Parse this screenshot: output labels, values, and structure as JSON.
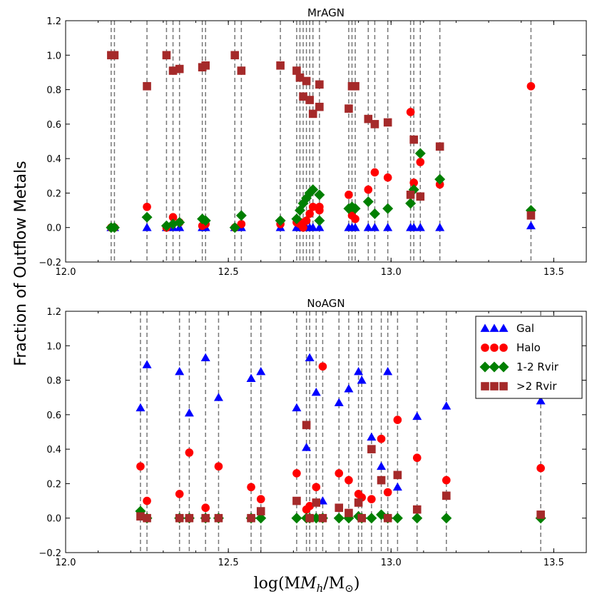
{
  "figure": {
    "ylabel": "Fraction of Outflow Metals",
    "xlabel_main": "log(M",
    "xlabel_sub1": "h",
    "xlabel_mid": "/M",
    "xlabel_sub2": "⊙",
    "xlabel_end": ")"
  },
  "legend": [
    {
      "name": "Gal",
      "marker": "triangle",
      "color": "#0000ff"
    },
    {
      "name": "Halo",
      "marker": "circle",
      "color": "#ff0000"
    },
    {
      "name": "1-2 Rvir",
      "marker": "diamond",
      "color": "#007f00"
    },
    {
      "name": ">2 Rvir",
      "marker": "square",
      "color": "#a52a2a"
    }
  ],
  "chart_data": [
    {
      "type": "scatter",
      "title": "MrAGN",
      "xlim": [
        12.0,
        13.6
      ],
      "ylim": [
        -0.2,
        1.2
      ],
      "xticks": [
        "12.0",
        "12.5",
        "13.0",
        "13.5"
      ],
      "xtick_values": [
        12.0,
        12.5,
        13.0,
        13.5
      ],
      "yticks": [
        "−0.2",
        "0.0",
        "0.2",
        "0.4",
        "0.6",
        "0.8",
        "1.0",
        "1.2"
      ],
      "ytick_values": [
        -0.2,
        0.0,
        0.2,
        0.4,
        0.6,
        0.8,
        1.0,
        1.2
      ],
      "vlines": [
        12.14,
        12.15,
        12.25,
        12.31,
        12.33,
        12.35,
        12.42,
        12.43,
        12.52,
        12.54,
        12.66,
        12.71,
        12.72,
        12.73,
        12.74,
        12.75,
        12.76,
        12.78,
        12.87,
        12.88,
        12.89,
        12.93,
        12.95,
        12.99,
        13.06,
        13.07,
        13.09,
        13.15,
        13.43
      ],
      "series": [
        {
          "name": "Gal",
          "points": [
            [
              12.14,
              0.0
            ],
            [
              12.15,
              0.0
            ],
            [
              12.25,
              0.0
            ],
            [
              12.31,
              0.0
            ],
            [
              12.33,
              0.0
            ],
            [
              12.35,
              0.0
            ],
            [
              12.42,
              0.0
            ],
            [
              12.43,
              0.0
            ],
            [
              12.52,
              0.0
            ],
            [
              12.54,
              0.0
            ],
            [
              12.66,
              0.0
            ],
            [
              12.71,
              0.0
            ],
            [
              12.72,
              0.0
            ],
            [
              12.73,
              0.0
            ],
            [
              12.74,
              0.0
            ],
            [
              12.75,
              0.0
            ],
            [
              12.76,
              0.0
            ],
            [
              12.78,
              0.0
            ],
            [
              12.87,
              0.0
            ],
            [
              12.88,
              0.0
            ],
            [
              12.89,
              0.0
            ],
            [
              12.93,
              0.0
            ],
            [
              12.95,
              0.0
            ],
            [
              12.99,
              0.0
            ],
            [
              13.06,
              0.0
            ],
            [
              13.07,
              0.0
            ],
            [
              13.09,
              0.0
            ],
            [
              13.15,
              0.0
            ],
            [
              13.43,
              0.01
            ]
          ]
        },
        {
          "name": "Halo",
          "points": [
            [
              12.14,
              0.0
            ],
            [
              12.15,
              0.0
            ],
            [
              12.25,
              0.12
            ],
            [
              12.31,
              0.0
            ],
            [
              12.33,
              0.06
            ],
            [
              12.35,
              0.03
            ],
            [
              12.42,
              0.01
            ],
            [
              12.43,
              0.02
            ],
            [
              12.52,
              0.0
            ],
            [
              12.54,
              0.02
            ],
            [
              12.66,
              0.02
            ],
            [
              12.71,
              0.03
            ],
            [
              12.72,
              0.02
            ],
            [
              12.73,
              0.03
            ],
            [
              12.74,
              0.04
            ],
            [
              12.75,
              0.08
            ],
            [
              12.76,
              0.12
            ],
            [
              12.78,
              0.12
            ],
            [
              12.87,
              0.19
            ],
            [
              12.88,
              0.07
            ],
            [
              12.89,
              0.05
            ],
            [
              12.93,
              0.22
            ],
            [
              12.95,
              0.32
            ],
            [
              12.99,
              0.29
            ],
            [
              13.06,
              0.67
            ],
            [
              13.07,
              0.26
            ],
            [
              13.09,
              0.38
            ],
            [
              13.15,
              0.25
            ],
            [
              13.43,
              0.82
            ]
          ]
        },
        {
          "name": "1-2 Rvir",
          "points": [
            [
              12.14,
              0.0
            ],
            [
              12.15,
              0.0
            ],
            [
              12.25,
              0.06
            ],
            [
              12.31,
              0.01
            ],
            [
              12.33,
              0.02
            ],
            [
              12.35,
              0.03
            ],
            [
              12.42,
              0.05
            ],
            [
              12.43,
              0.04
            ],
            [
              12.52,
              0.0
            ],
            [
              12.54,
              0.07
            ],
            [
              12.66,
              0.04
            ],
            [
              12.71,
              0.05
            ],
            [
              12.72,
              0.1
            ],
            [
              12.73,
              0.14
            ],
            [
              12.74,
              0.17
            ],
            [
              12.75,
              0.2
            ],
            [
              12.76,
              0.22
            ],
            [
              12.78,
              0.19
            ],
            [
              12.87,
              0.11
            ],
            [
              12.88,
              0.12
            ],
            [
              12.89,
              0.11
            ],
            [
              12.93,
              0.15
            ],
            [
              12.95,
              0.08
            ],
            [
              12.99,
              0.11
            ],
            [
              13.06,
              0.14
            ],
            [
              13.07,
              0.22
            ],
            [
              13.09,
              0.43
            ],
            [
              13.15,
              0.28
            ],
            [
              13.43,
              0.1
            ]
          ]
        },
        {
          "name": ">2 Rvir",
          "points": [
            [
              12.14,
              1.0
            ],
            [
              12.15,
              1.0
            ],
            [
              12.25,
              0.82
            ],
            [
              12.31,
              1.0
            ],
            [
              12.33,
              0.91
            ],
            [
              12.35,
              0.92
            ],
            [
              12.42,
              0.93
            ],
            [
              12.43,
              0.94
            ],
            [
              12.52,
              1.0
            ],
            [
              12.54,
              0.91
            ],
            [
              12.66,
              0.94
            ],
            [
              12.71,
              0.91
            ],
            [
              12.72,
              0.87
            ],
            [
              12.73,
              0.76
            ],
            [
              12.74,
              0.85
            ],
            [
              12.75,
              0.74
            ],
            [
              12.76,
              0.66
            ],
            [
              12.78,
              0.83
            ],
            [
              12.87,
              0.69
            ],
            [
              12.88,
              0.82
            ],
            [
              12.89,
              0.82
            ],
            [
              12.93,
              0.63
            ],
            [
              12.95,
              0.6
            ],
            [
              12.99,
              0.61
            ],
            [
              13.06,
              0.19
            ],
            [
              13.07,
              0.51
            ],
            [
              13.09,
              0.18
            ],
            [
              13.15,
              0.47
            ],
            [
              13.43,
              0.07
            ]
          ]
        }
      ],
      "extra_points": [
        {
          "series": ">2 Rvir",
          "points": [
            [
              12.78,
              0.7
            ]
          ]
        },
        {
          "series": "1-2 Rvir",
          "points": [
            [
              12.78,
              0.04
            ]
          ]
        },
        {
          "series": "Halo",
          "points": [
            [
              12.78,
              0.1
            ],
            [
              12.73,
              0.0
            ]
          ]
        }
      ]
    },
    {
      "type": "scatter",
      "title": "NoAGN",
      "xlim": [
        12.0,
        13.6
      ],
      "ylim": [
        -0.2,
        1.2
      ],
      "xticks": [
        "12.0",
        "12.5",
        "13.0",
        "13.5"
      ],
      "xtick_values": [
        12.0,
        12.5,
        13.0,
        13.5
      ],
      "yticks": [
        "−0.2",
        "0.0",
        "0.2",
        "0.4",
        "0.6",
        "0.8",
        "1.0",
        "1.2"
      ],
      "ytick_values": [
        -0.2,
        0.0,
        0.2,
        0.4,
        0.6,
        0.8,
        1.0,
        1.2
      ],
      "vlines": [
        12.23,
        12.25,
        12.35,
        12.38,
        12.43,
        12.47,
        12.57,
        12.6,
        12.71,
        12.74,
        12.75,
        12.77,
        12.79,
        12.84,
        12.87,
        12.9,
        12.91,
        12.94,
        12.97,
        12.99,
        13.02,
        13.08,
        13.17,
        13.46
      ],
      "series": [
        {
          "name": "Gal",
          "points": [
            [
              12.23,
              0.64
            ],
            [
              12.25,
              0.89
            ],
            [
              12.35,
              0.85
            ],
            [
              12.38,
              0.61
            ],
            [
              12.43,
              0.93
            ],
            [
              12.47,
              0.7
            ],
            [
              12.57,
              0.81
            ],
            [
              12.6,
              0.85
            ],
            [
              12.71,
              0.64
            ],
            [
              12.74,
              0.41
            ],
            [
              12.75,
              0.93
            ],
            [
              12.77,
              0.73
            ],
            [
              12.79,
              0.1
            ],
            [
              12.84,
              0.67
            ],
            [
              12.87,
              0.75
            ],
            [
              12.9,
              0.85
            ],
            [
              12.91,
              0.8
            ],
            [
              12.94,
              0.47
            ],
            [
              12.97,
              0.3
            ],
            [
              12.99,
              0.85
            ],
            [
              13.02,
              0.18
            ],
            [
              13.08,
              0.59
            ],
            [
              13.17,
              0.65
            ],
            [
              13.46,
              0.68
            ]
          ]
        },
        {
          "name": "Halo",
          "points": [
            [
              12.23,
              0.3
            ],
            [
              12.25,
              0.1
            ],
            [
              12.35,
              0.14
            ],
            [
              12.38,
              0.38
            ],
            [
              12.43,
              0.06
            ],
            [
              12.47,
              0.3
            ],
            [
              12.57,
              0.18
            ],
            [
              12.6,
              0.11
            ],
            [
              12.71,
              0.26
            ],
            [
              12.74,
              0.05
            ],
            [
              12.75,
              0.07
            ],
            [
              12.77,
              0.18
            ],
            [
              12.79,
              0.88
            ],
            [
              12.84,
              0.26
            ],
            [
              12.87,
              0.22
            ],
            [
              12.9,
              0.14
            ],
            [
              12.91,
              0.12
            ],
            [
              12.94,
              0.11
            ],
            [
              12.97,
              0.46
            ],
            [
              12.99,
              0.15
            ],
            [
              13.02,
              0.57
            ],
            [
              13.08,
              0.35
            ],
            [
              13.17,
              0.22
            ],
            [
              13.46,
              0.29
            ]
          ]
        },
        {
          "name": "1-2 Rvir",
          "points": [
            [
              12.23,
              0.04
            ],
            [
              12.25,
              0.0
            ],
            [
              12.35,
              0.0
            ],
            [
              12.38,
              0.0
            ],
            [
              12.43,
              0.0
            ],
            [
              12.47,
              0.0
            ],
            [
              12.57,
              0.0
            ],
            [
              12.6,
              0.0
            ],
            [
              12.71,
              0.0
            ],
            [
              12.74,
              0.0
            ],
            [
              12.75,
              0.0
            ],
            [
              12.77,
              0.0
            ],
            [
              12.79,
              0.0
            ],
            [
              12.84,
              0.0
            ],
            [
              12.87,
              0.0
            ],
            [
              12.9,
              0.01
            ],
            [
              12.91,
              0.0
            ],
            [
              12.94,
              0.0
            ],
            [
              12.97,
              0.02
            ],
            [
              12.99,
              0.0
            ],
            [
              13.02,
              0.0
            ],
            [
              13.08,
              0.0
            ],
            [
              13.17,
              0.0
            ],
            [
              13.46,
              0.0
            ]
          ]
        },
        {
          "name": ">2 Rvir",
          "points": [
            [
              12.23,
              0.01
            ],
            [
              12.25,
              0.0
            ],
            [
              12.35,
              0.0
            ],
            [
              12.38,
              0.0
            ],
            [
              12.43,
              0.0
            ],
            [
              12.47,
              0.0
            ],
            [
              12.57,
              0.0
            ],
            [
              12.6,
              0.04
            ],
            [
              12.71,
              0.1
            ],
            [
              12.74,
              0.54
            ],
            [
              12.75,
              0.0
            ],
            [
              12.77,
              0.09
            ],
            [
              12.79,
              0.0
            ],
            [
              12.84,
              0.06
            ],
            [
              12.87,
              0.03
            ],
            [
              12.9,
              0.09
            ],
            [
              12.91,
              0.0
            ],
            [
              12.94,
              0.4
            ],
            [
              12.97,
              0.22
            ],
            [
              12.99,
              0.0
            ],
            [
              13.02,
              0.25
            ],
            [
              13.08,
              0.05
            ],
            [
              13.17,
              0.13
            ],
            [
              13.46,
              0.02
            ]
          ]
        }
      ],
      "extra_points": []
    }
  ]
}
